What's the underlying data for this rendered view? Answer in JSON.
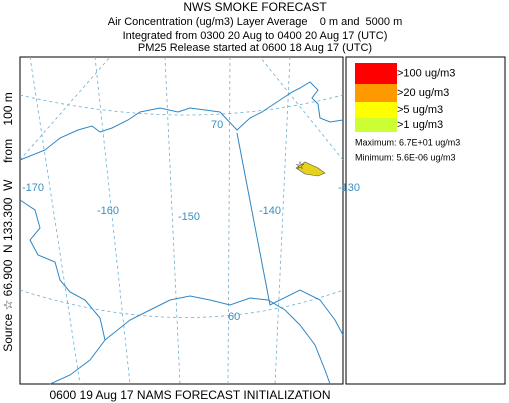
{
  "header": {
    "title": "NWS SMOKE FORECAST",
    "lines": [
      "Air Concentration (ug/m3) Layer Average    0 m and  5000 m",
      "Integrated from 0300 20 Aug to 0400 20 Aug 17 (UTC)",
      "PM25 Release started at 0600 18 Aug 17 (UTC)"
    ]
  },
  "side_label": "Source ☆ 66.900  N 133.300  W     from    100 m",
  "legend": {
    "items": [
      {
        "label": ">100 ug/m3",
        "color": "#ff0000"
      },
      {
        "label": ">20 ug/m3",
        "color": "#ff9900"
      },
      {
        "label": ">5 ug/m3",
        "color": "#ffff00"
      },
      {
        "label": ">1 ug/m3",
        "color": "#ccff33"
      }
    ],
    "maximum": "Maximum: 6.7E+01 ug/m3",
    "minimum": "Minimum: 5.6E-06 ug/m3"
  },
  "map": {
    "grid_labels": [
      "70",
      "-170",
      "-160",
      "-150",
      "-140",
      "-130",
      "60"
    ]
  },
  "footer": "0600 19 Aug 17 NAMS FORECAST INITIALIZATION"
}
